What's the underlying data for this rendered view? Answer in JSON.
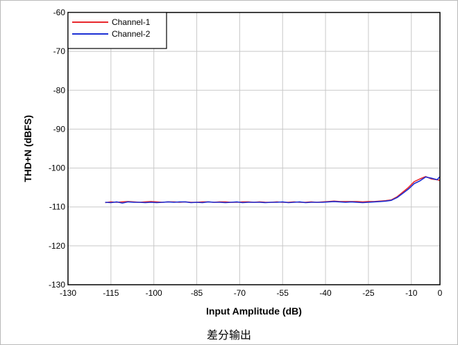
{
  "caption": "差分输出",
  "chart_data": {
    "type": "line",
    "title": "",
    "xlabel": "Input Amplitude (dB)",
    "ylabel": "THD+N (dBFS)",
    "xlim": [
      -130,
      0
    ],
    "ylim": [
      -130,
      -60
    ],
    "xticks": [
      -130,
      -115,
      -100,
      -85,
      -70,
      -55,
      -40,
      -25,
      -10,
      0
    ],
    "yticks": [
      -60,
      -70,
      -80,
      -90,
      -100,
      -110,
      -120,
      -130
    ],
    "grid": true,
    "legend": "top-left",
    "series": [
      {
        "name": "Channel-1",
        "color": "#e8262b",
        "x": [
          -117,
          -115,
          -113,
          -111,
          -109,
          -107,
          -105,
          -103,
          -101,
          -99,
          -97,
          -95,
          -93,
          -91,
          -89,
          -87,
          -85,
          -83,
          -81,
          -79,
          -77,
          -75,
          -73,
          -71,
          -69,
          -67,
          -65,
          -63,
          -61,
          -59,
          -57,
          -55,
          -53,
          -51,
          -49,
          -47,
          -45,
          -43,
          -41,
          -39,
          -37,
          -35,
          -33,
          -31,
          -29,
          -27,
          -25,
          -23,
          -21,
          -19,
          -17,
          -15,
          -13,
          -11,
          -9,
          -7,
          -5,
          -3,
          -1,
          0
        ],
        "y": [
          -108.9,
          -108.7,
          -108.8,
          -108.7,
          -108.6,
          -108.7,
          -108.8,
          -108.7,
          -108.6,
          -108.7,
          -108.8,
          -108.7,
          -108.7,
          -108.8,
          -108.7,
          -108.8,
          -108.8,
          -108.7,
          -108.7,
          -108.8,
          -108.7,
          -108.7,
          -108.8,
          -108.8,
          -108.7,
          -108.7,
          -108.8,
          -108.7,
          -108.8,
          -108.8,
          -108.7,
          -108.8,
          -108.8,
          -108.7,
          -108.8,
          -108.8,
          -108.7,
          -108.8,
          -108.7,
          -108.6,
          -108.5,
          -108.6,
          -108.6,
          -108.6,
          -108.6,
          -108.7,
          -108.6,
          -108.6,
          -108.5,
          -108.4,
          -108.2,
          -107.4,
          -106.2,
          -105.0,
          -103.5,
          -102.8,
          -102.2,
          -102.8,
          -103.0,
          -103.2
        ]
      },
      {
        "name": "Channel-2",
        "color": "#1b2fd4",
        "x": [
          -117,
          -115,
          -113,
          -111,
          -109,
          -107,
          -105,
          -103,
          -101,
          -99,
          -97,
          -95,
          -93,
          -91,
          -89,
          -87,
          -85,
          -83,
          -81,
          -79,
          -77,
          -75,
          -73,
          -71,
          -69,
          -67,
          -65,
          -63,
          -61,
          -59,
          -57,
          -55,
          -53,
          -51,
          -49,
          -47,
          -45,
          -43,
          -41,
          -39,
          -37,
          -35,
          -33,
          -31,
          -29,
          -27,
          -25,
          -23,
          -21,
          -19,
          -17,
          -15,
          -13,
          -11,
          -9,
          -7,
          -5,
          -3,
          -1,
          0
        ],
        "y": [
          -108.8,
          -108.9,
          -108.7,
          -109.0,
          -108.7,
          -108.8,
          -108.8,
          -108.9,
          -108.8,
          -108.9,
          -108.8,
          -108.7,
          -108.8,
          -108.7,
          -108.7,
          -108.9,
          -108.8,
          -108.9,
          -108.7,
          -108.8,
          -108.8,
          -108.9,
          -108.8,
          -108.7,
          -108.9,
          -108.8,
          -108.8,
          -108.8,
          -108.9,
          -108.8,
          -108.8,
          -108.7,
          -108.9,
          -108.8,
          -108.7,
          -108.9,
          -108.8,
          -108.8,
          -108.8,
          -108.7,
          -108.6,
          -108.7,
          -108.8,
          -108.7,
          -108.8,
          -108.9,
          -108.8,
          -108.7,
          -108.6,
          -108.5,
          -108.3,
          -107.6,
          -106.5,
          -105.4,
          -104.0,
          -103.3,
          -102.3,
          -102.6,
          -103.0,
          -102.2
        ]
      }
    ]
  }
}
